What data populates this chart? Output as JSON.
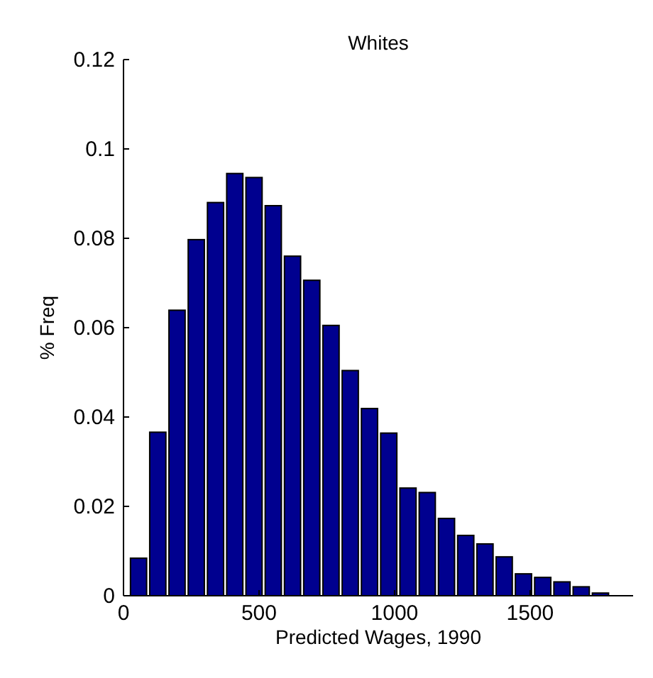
{
  "chart_data": {
    "type": "histogram",
    "title": "Whites",
    "xlabel": "Predicted Wages, 1990",
    "ylabel": "% Freq",
    "color": "#00008f",
    "bins": [
      20,
      91,
      162,
      233,
      304,
      375,
      446,
      517,
      588,
      659,
      730,
      801,
      872,
      943,
      1014,
      1085,
      1156,
      1227,
      1298,
      1369,
      1440,
      1511,
      1582,
      1653,
      1724,
      1795
    ],
    "values": [
      0.0084,
      0.0366,
      0.0639,
      0.0797,
      0.088,
      0.0945,
      0.0936,
      0.0873,
      0.076,
      0.0706,
      0.0605,
      0.0504,
      0.0419,
      0.0364,
      0.0241,
      0.0231,
      0.0173,
      0.0135,
      0.0116,
      0.0087,
      0.0049,
      0.0041,
      0.0031,
      0.002,
      0.0006
    ],
    "xlim": [
      0,
      1880
    ],
    "xticks": [
      0,
      500,
      1000,
      1500
    ],
    "ylim": [
      0,
      0.12
    ],
    "yticks": [
      0,
      0.02,
      0.04,
      0.06,
      0.08,
      0.1,
      0.12
    ]
  }
}
